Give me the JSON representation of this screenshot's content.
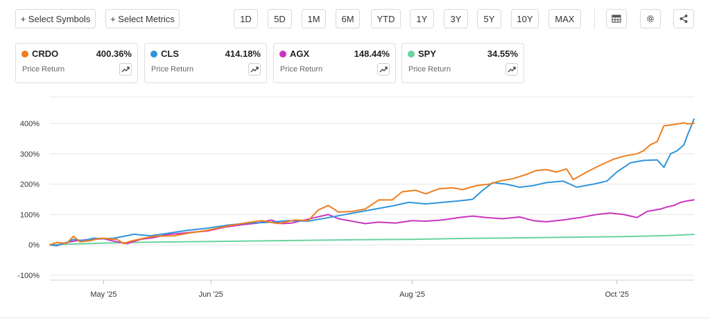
{
  "toolbar": {
    "select_symbols": "+ Select Symbols",
    "select_metrics": "+ Select Metrics",
    "ranges": [
      "1D",
      "5D",
      "1M",
      "6M",
      "YTD",
      "1Y",
      "3Y",
      "5Y",
      "10Y",
      "MAX"
    ],
    "icons": [
      "table-icon",
      "gear-icon",
      "share-icon"
    ]
  },
  "cards": [
    {
      "symbol": "CRDO",
      "value": "400.36%",
      "metric": "Price Return",
      "color": "#ee7e1e"
    },
    {
      "symbol": "CLS",
      "value": "414.18%",
      "metric": "Price Return",
      "color": "#2f95dc"
    },
    {
      "symbol": "AGX",
      "value": "148.44%",
      "metric": "Price Return",
      "color": "#c935be"
    },
    {
      "symbol": "SPY",
      "value": "34.55%",
      "metric": "Price Return",
      "color": "#69d3a0"
    }
  ],
  "chart_data": {
    "type": "line",
    "title": "",
    "xlabel": "",
    "ylabel": "",
    "x_start": "2025-04-15",
    "x_end": "2025-10-24",
    "xticks": [
      {
        "label": "May '25",
        "date": "2025-05-01"
      },
      {
        "label": "Jun '25",
        "date": "2025-06-02"
      },
      {
        "label": "Aug '25",
        "date": "2025-08-01"
      },
      {
        "label": "Oct '25",
        "date": "2025-10-01"
      }
    ],
    "ylim": [
      -100,
      400
    ],
    "yticks": [
      {
        "label": "-100%",
        "value": -100
      },
      {
        "label": "0%",
        "value": 0
      },
      {
        "label": "100%",
        "value": 100
      },
      {
        "label": "200%",
        "value": 200
      },
      {
        "label": "300%",
        "value": 300
      },
      {
        "label": "400%",
        "value": 400
      }
    ],
    "grid": true,
    "series": [
      {
        "name": "CRDO",
        "color": "#ee7e1e",
        "points": [
          [
            "2025-04-15",
            0
          ],
          [
            "2025-04-17",
            8
          ],
          [
            "2025-04-20",
            5
          ],
          [
            "2025-04-22",
            28
          ],
          [
            "2025-04-24",
            10
          ],
          [
            "2025-04-27",
            14
          ],
          [
            "2025-04-30",
            22
          ],
          [
            "2025-05-05",
            18
          ],
          [
            "2025-05-07",
            4
          ],
          [
            "2025-05-09",
            12
          ],
          [
            "2025-05-13",
            22
          ],
          [
            "2025-05-16",
            28
          ],
          [
            "2025-05-22",
            30
          ],
          [
            "2025-05-27",
            40
          ],
          [
            "2025-06-01",
            48
          ],
          [
            "2025-06-07",
            62
          ],
          [
            "2025-06-12",
            72
          ],
          [
            "2025-06-17",
            80
          ],
          [
            "2025-06-22",
            70
          ],
          [
            "2025-06-27",
            82
          ],
          [
            "2025-07-01",
            80
          ],
          [
            "2025-07-04",
            115
          ],
          [
            "2025-07-07",
            130
          ],
          [
            "2025-07-10",
            108
          ],
          [
            "2025-07-14",
            110
          ],
          [
            "2025-07-18",
            118
          ],
          [
            "2025-07-22",
            148
          ],
          [
            "2025-07-26",
            148
          ],
          [
            "2025-07-29",
            175
          ],
          [
            "2025-08-02",
            180
          ],
          [
            "2025-08-05",
            168
          ],
          [
            "2025-08-09",
            185
          ],
          [
            "2025-08-13",
            188
          ],
          [
            "2025-08-16",
            182
          ],
          [
            "2025-08-20",
            195
          ],
          [
            "2025-08-24",
            200
          ],
          [
            "2025-08-27",
            210
          ],
          [
            "2025-08-31",
            218
          ],
          [
            "2025-09-04",
            232
          ],
          [
            "2025-09-07",
            245
          ],
          [
            "2025-09-10",
            248
          ],
          [
            "2025-09-13",
            240
          ],
          [
            "2025-09-16",
            250
          ],
          [
            "2025-09-18",
            215
          ],
          [
            "2025-09-22",
            240
          ],
          [
            "2025-09-26",
            262
          ],
          [
            "2025-09-30",
            282
          ],
          [
            "2025-10-03",
            292
          ],
          [
            "2025-10-07",
            300
          ],
          [
            "2025-10-09",
            310
          ],
          [
            "2025-10-11",
            330
          ],
          [
            "2025-10-13",
            340
          ],
          [
            "2025-10-15",
            392
          ],
          [
            "2025-10-17",
            395
          ],
          [
            "2025-10-19",
            398
          ],
          [
            "2025-10-21",
            402
          ],
          [
            "2025-10-22",
            398
          ],
          [
            "2025-10-24",
            400.36
          ]
        ]
      },
      {
        "name": "CLS",
        "color": "#2f95dc",
        "points": [
          [
            "2025-04-15",
            0
          ],
          [
            "2025-04-17",
            -2
          ],
          [
            "2025-04-20",
            8
          ],
          [
            "2025-04-22",
            18
          ],
          [
            "2025-04-25",
            14
          ],
          [
            "2025-04-28",
            22
          ],
          [
            "2025-05-01",
            20
          ],
          [
            "2025-05-04",
            22
          ],
          [
            "2025-05-07",
            28
          ],
          [
            "2025-05-10",
            35
          ],
          [
            "2025-05-15",
            30
          ],
          [
            "2025-05-20",
            38
          ],
          [
            "2025-05-26",
            48
          ],
          [
            "2025-06-01",
            55
          ],
          [
            "2025-06-07",
            65
          ],
          [
            "2025-06-13",
            72
          ],
          [
            "2025-06-19",
            74
          ],
          [
            "2025-06-25",
            80
          ],
          [
            "2025-07-01",
            78
          ],
          [
            "2025-07-06",
            88
          ],
          [
            "2025-07-11",
            98
          ],
          [
            "2025-07-16",
            108
          ],
          [
            "2025-07-21",
            118
          ],
          [
            "2025-07-26",
            128
          ],
          [
            "2025-07-31",
            140
          ],
          [
            "2025-08-05",
            135
          ],
          [
            "2025-08-10",
            140
          ],
          [
            "2025-08-15",
            145
          ],
          [
            "2025-08-19",
            150
          ],
          [
            "2025-08-22",
            180
          ],
          [
            "2025-08-25",
            205
          ],
          [
            "2025-08-29",
            200
          ],
          [
            "2025-09-02",
            190
          ],
          [
            "2025-09-06",
            195
          ],
          [
            "2025-09-10",
            205
          ],
          [
            "2025-09-15",
            210
          ],
          [
            "2025-09-19",
            190
          ],
          [
            "2025-09-24",
            200
          ],
          [
            "2025-09-28",
            210
          ],
          [
            "2025-10-01",
            240
          ],
          [
            "2025-10-05",
            270
          ],
          [
            "2025-10-09",
            278
          ],
          [
            "2025-10-13",
            280
          ],
          [
            "2025-10-15",
            255
          ],
          [
            "2025-10-17",
            300
          ],
          [
            "2025-10-19",
            310
          ],
          [
            "2025-10-21",
            330
          ],
          [
            "2025-10-22",
            360
          ],
          [
            "2025-10-24",
            414.18
          ]
        ]
      },
      {
        "name": "AGX",
        "color": "#c935be",
        "points": [
          [
            "2025-04-15",
            0
          ],
          [
            "2025-04-17",
            -3
          ],
          [
            "2025-04-20",
            8
          ],
          [
            "2025-04-23",
            14
          ],
          [
            "2025-04-27",
            18
          ],
          [
            "2025-05-01",
            20
          ],
          [
            "2025-05-05",
            10
          ],
          [
            "2025-05-08",
            4
          ],
          [
            "2025-05-12",
            18
          ],
          [
            "2025-05-16",
            24
          ],
          [
            "2025-05-20",
            34
          ],
          [
            "2025-05-24",
            38
          ],
          [
            "2025-05-28",
            42
          ],
          [
            "2025-06-01",
            46
          ],
          [
            "2025-06-06",
            58
          ],
          [
            "2025-06-11",
            66
          ],
          [
            "2025-06-16",
            72
          ],
          [
            "2025-06-20",
            82
          ],
          [
            "2025-06-23",
            70
          ],
          [
            "2025-06-26",
            72
          ],
          [
            "2025-06-30",
            82
          ],
          [
            "2025-07-03",
            90
          ],
          [
            "2025-07-07",
            100
          ],
          [
            "2025-07-10",
            86
          ],
          [
            "2025-07-14",
            78
          ],
          [
            "2025-07-18",
            70
          ],
          [
            "2025-07-22",
            75
          ],
          [
            "2025-07-27",
            72
          ],
          [
            "2025-08-01",
            80
          ],
          [
            "2025-08-05",
            78
          ],
          [
            "2025-08-10",
            82
          ],
          [
            "2025-08-15",
            90
          ],
          [
            "2025-08-19",
            95
          ],
          [
            "2025-08-23",
            90
          ],
          [
            "2025-08-28",
            86
          ],
          [
            "2025-09-02",
            92
          ],
          [
            "2025-09-06",
            80
          ],
          [
            "2025-09-10",
            76
          ],
          [
            "2025-09-15",
            82
          ],
          [
            "2025-09-20",
            90
          ],
          [
            "2025-09-25",
            100
          ],
          [
            "2025-09-29",
            105
          ],
          [
            "2025-10-03",
            100
          ],
          [
            "2025-10-07",
            90
          ],
          [
            "2025-10-10",
            110
          ],
          [
            "2025-10-14",
            118
          ],
          [
            "2025-10-16",
            125
          ],
          [
            "2025-10-18",
            130
          ],
          [
            "2025-10-20",
            140
          ],
          [
            "2025-10-22",
            145
          ],
          [
            "2025-10-24",
            148.44
          ]
        ]
      },
      {
        "name": "SPY",
        "color": "#69d3a0",
        "points": [
          [
            "2025-04-15",
            0
          ],
          [
            "2025-04-22",
            3
          ],
          [
            "2025-05-01",
            6
          ],
          [
            "2025-05-15",
            9
          ],
          [
            "2025-06-01",
            11
          ],
          [
            "2025-06-15",
            13
          ],
          [
            "2025-07-01",
            15
          ],
          [
            "2025-07-15",
            17
          ],
          [
            "2025-08-01",
            18
          ],
          [
            "2025-08-15",
            21
          ],
          [
            "2025-09-01",
            23
          ],
          [
            "2025-09-15",
            25
          ],
          [
            "2025-10-01",
            27
          ],
          [
            "2025-10-10",
            29
          ],
          [
            "2025-10-17",
            31
          ],
          [
            "2025-10-24",
            34.55
          ]
        ]
      }
    ]
  }
}
